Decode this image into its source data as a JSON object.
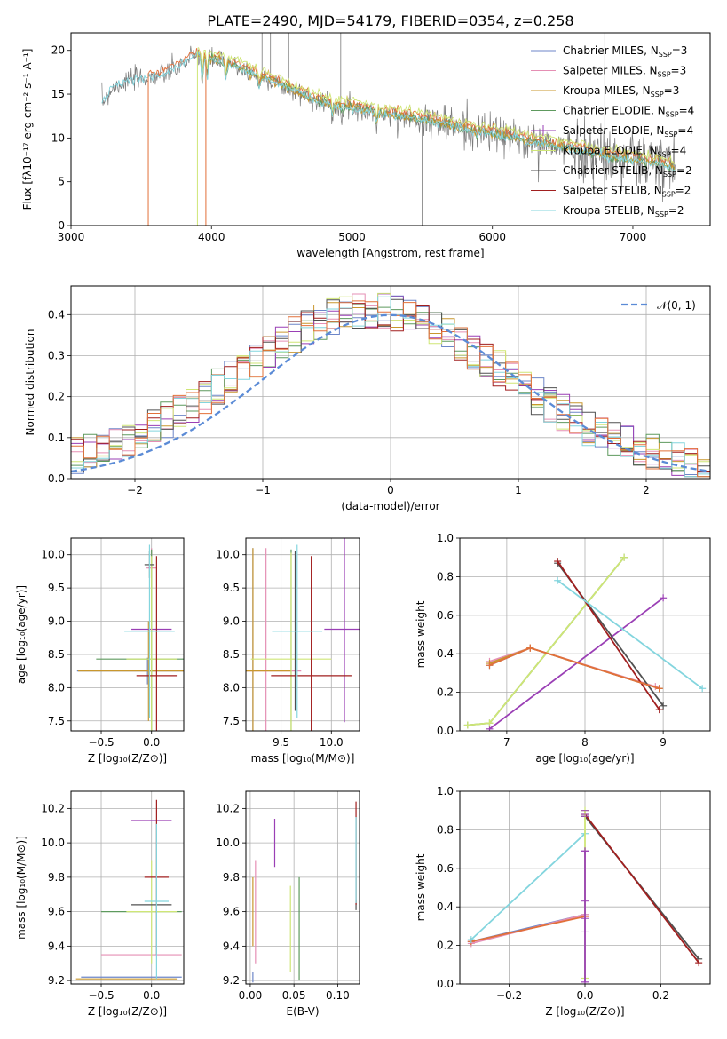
{
  "figure": {
    "title": "PLATE=2490, MJD=54179, FIBERID=0354, z=0.258"
  },
  "colors": {
    "chabrier_miles": "#6d86c8",
    "salpeter_miles": "#e58fb4",
    "kroupa_miles": "#c9972e",
    "chabrier_elodie": "#5e9a5e",
    "salpeter_elodie": "#9a3fb5",
    "kroupa_elodie": "#cfe676",
    "chabrier_stelib": "#505050",
    "salpeter_stelib": "#a11f1f",
    "kroupa_stelib": "#83d5de",
    "orange_line": "#e2703a",
    "gauss": "#5b8bd6"
  },
  "chart_data": [
    {
      "type": "line",
      "id": "spectrum",
      "title": "PLATE=2490, MJD=54179, FIBERID=0354, z=0.258",
      "xlabel": "wavelength [Angstrom, rest frame]",
      "ylabel": "Flux [fλ10⁻¹⁷ erg cm⁻² s⁻¹ A⁻¹]",
      "xlim": [
        3000,
        7550
      ],
      "ylim": [
        0,
        22
      ],
      "xticks": [
        3000,
        4000,
        5000,
        6000,
        7000
      ],
      "yticks": [
        0,
        5,
        10,
        15,
        20
      ],
      "legend": [
        "Chabrier MILES, N_SSP=3",
        "Salpeter MILES, N_SSP=3",
        "Kroupa MILES, N_SSP=3",
        "Chabrier ELODIE, N_SSP=4",
        "Salpeter ELODIE, N_SSP=4",
        "Kroupa ELODIE, N_SSP=4",
        "Chabrier STELIB, N_SSP=2",
        "Salpeter STELIB, N_SSP=2",
        "Kroupa STELIB, N_SSP=2"
      ],
      "legend_placement": "top-right",
      "continuum": {
        "wavelength": [
          3220,
          3300,
          3400,
          3500,
          3600,
          3700,
          3800,
          3900,
          4000,
          4100,
          4200,
          4300,
          4400,
          4500,
          4600,
          4700,
          4800,
          4900,
          5000,
          5200,
          5400,
          5600,
          5800,
          6000,
          6200,
          6400,
          6600,
          6800,
          7000,
          7200,
          7300
        ],
        "flux": [
          14.0,
          15.8,
          16.5,
          16.8,
          17.0,
          17.5,
          18.5,
          19.5,
          19.0,
          18.6,
          18.0,
          17.2,
          16.8,
          16.0,
          15.3,
          14.6,
          14.0,
          13.6,
          13.5,
          12.8,
          12.4,
          11.8,
          11.1,
          10.5,
          9.8,
          9.2,
          8.6,
          8.0,
          7.5,
          7.0,
          6.5
        ]
      }
    },
    {
      "type": "bar",
      "id": "residuals",
      "xlabel": "(data-model)/error",
      "ylabel": "Normed distribution",
      "xlim": [
        -2.5,
        2.5
      ],
      "ylim": [
        0,
        0.47
      ],
      "xticks": [
        -2,
        -1,
        0,
        1,
        2
      ],
      "yticks": [
        0.0,
        0.1,
        0.2,
        0.3,
        0.4
      ],
      "legend": [
        "𝒩(0, 1)"
      ],
      "legend_placement": "top-right",
      "bin_edges_step": 0.1
    },
    {
      "type": "scatter",
      "id": "age_vs_Z",
      "xlabel": "Z [log₁₀(Z/Z⊙)]",
      "ylabel": "age  [log₁₀(age/yr)]",
      "xlim": [
        -0.8,
        0.32
      ],
      "ylim": [
        7.35,
        10.25
      ],
      "xticks": [
        -0.5,
        0.0
      ],
      "yticks": [
        7.5,
        8.0,
        8.5,
        9.0,
        9.5,
        10.0
      ],
      "errorbars": [
        {
          "color": "chabrier_miles",
          "x": -0.04,
          "y": 8.25,
          "xerr": 0.7,
          "yerr": 0.2
        },
        {
          "color": "salpeter_miles",
          "x": 0.0,
          "y": 9.8,
          "xerr": 0.05,
          "yerr": 0.3
        },
        {
          "color": "kroupa_miles",
          "x": -0.03,
          "y": 8.25,
          "xerr": 0.7,
          "yerr": 0.75
        },
        {
          "color": "chabrier_elodie",
          "x": 0.0,
          "y": 8.43,
          "xerr": 0.55,
          "yerr": 1.65
        },
        {
          "color": "salpeter_elodie",
          "x": 0.0,
          "y": 8.88,
          "xerr": 0.2,
          "yerr": 0.0
        },
        {
          "color": "kroupa_elodie",
          "x": 0.0,
          "y": 8.43,
          "xerr": 0.25,
          "yerr": 1.55
        },
        {
          "color": "chabrier_stelib",
          "x": -0.02,
          "y": 9.85,
          "xerr": 0.05,
          "yerr": 0.2
        },
        {
          "color": "salpeter_stelib",
          "x": 0.05,
          "y": 8.18,
          "xerr": 0.2,
          "yerr": 1.8
        },
        {
          "color": "kroupa_stelib",
          "x": -0.02,
          "y": 8.85,
          "xerr": 0.25,
          "yerr": 1.3
        }
      ]
    },
    {
      "type": "scatter",
      "id": "age_vs_mass",
      "xlabel": "mass [log₁₀(M/M⊙)]",
      "ylabel": "",
      "xlim": [
        9.15,
        10.28
      ],
      "ylim": [
        7.35,
        10.25
      ],
      "xticks": [
        9.5,
        10.0
      ],
      "yticks": [
        7.5,
        8.0,
        8.5,
        9.0,
        9.5,
        10.0
      ],
      "errorbars": [
        {
          "color": "chabrier_miles",
          "x": 9.22,
          "y": 8.25,
          "xerr": 0.0,
          "yerr": 1.85
        },
        {
          "color": "salpeter_miles",
          "x": 9.35,
          "y": 8.25,
          "xerr": 0.35,
          "yerr": 1.85
        },
        {
          "color": "kroupa_miles",
          "x": 9.22,
          "y": 8.25,
          "xerr": 0.38,
          "yerr": 1.85
        },
        {
          "color": "chabrier_elodie",
          "x": 9.6,
          "y": 8.43,
          "xerr": 0.0,
          "yerr": 1.65
        },
        {
          "color": "salpeter_elodie",
          "x": 10.13,
          "y": 8.88,
          "xerr": 0.2,
          "yerr": 1.4
        },
        {
          "color": "kroupa_elodie",
          "x": 9.6,
          "y": 8.43,
          "xerr": 0.4,
          "yerr": 1.6
        },
        {
          "color": "chabrier_stelib",
          "x": 9.64,
          "y": 8.85,
          "xerr": 0.0,
          "yerr": 1.2
        },
        {
          "color": "salpeter_stelib",
          "x": 9.8,
          "y": 8.18,
          "xerr": 0.4,
          "yerr": 1.8
        },
        {
          "color": "kroupa_stelib",
          "x": 9.66,
          "y": 8.85,
          "xerr": 0.25,
          "yerr": 1.3
        }
      ]
    },
    {
      "type": "line",
      "id": "weight_vs_age",
      "xlabel": "age  [log₁₀(age/yr)]",
      "ylabel": "mass weight",
      "xlim": [
        6.4,
        9.6
      ],
      "ylim": [
        0.0,
        1.0
      ],
      "xticks": [
        7,
        8,
        9
      ],
      "yticks": [
        0.0,
        0.2,
        0.4,
        0.6,
        0.8,
        1.0
      ],
      "series": [
        {
          "color": "chabrier_miles",
          "x": [
            6.78,
            7.3,
            8.95
          ],
          "y": [
            0.34,
            0.43,
            0.22
          ]
        },
        {
          "color": "salpeter_miles",
          "x": [
            6.78,
            7.3,
            8.9
          ],
          "y": [
            0.36,
            0.43,
            0.23
          ]
        },
        {
          "color": "kroupa_miles",
          "x": [
            6.78,
            7.3,
            8.95
          ],
          "y": [
            0.35,
            0.43,
            0.22
          ]
        },
        {
          "color": "chabrier_elodie",
          "x": [
            6.5,
            6.78,
            8.5
          ],
          "y": [
            0.03,
            0.04,
            0.9
          ]
        },
        {
          "color": "salpeter_elodie",
          "x": [
            6.78,
            9.0
          ],
          "y": [
            0.01,
            0.69
          ]
        },
        {
          "color": "kroupa_elodie",
          "x": [
            6.5,
            6.78,
            8.5
          ],
          "y": [
            0.03,
            0.04,
            0.9
          ]
        },
        {
          "color": "chabrier_stelib",
          "x": [
            7.65,
            9.0
          ],
          "y": [
            0.87,
            0.13
          ]
        },
        {
          "color": "salpeter_stelib",
          "x": [
            7.65,
            8.95
          ],
          "y": [
            0.88,
            0.11
          ]
        },
        {
          "color": "kroupa_stelib",
          "x": [
            7.65,
            9.5
          ],
          "y": [
            0.78,
            0.22
          ]
        },
        {
          "color": "orange_line",
          "x": [
            6.78,
            7.3,
            8.95
          ],
          "y": [
            0.34,
            0.43,
            0.22
          ]
        }
      ]
    },
    {
      "type": "scatter",
      "id": "mass_vs_Z",
      "xlabel": "Z [log₁₀(Z/Z⊙)]",
      "ylabel": "mass [log₁₀(M/M⊙)]",
      "xlim": [
        -0.8,
        0.32
      ],
      "ylim": [
        9.18,
        10.3
      ],
      "xticks": [
        -0.5,
        0.0
      ],
      "yticks": [
        9.2,
        9.4,
        9.6,
        9.8,
        10.0,
        10.2
      ],
      "errorbars": [
        {
          "color": "chabrier_miles",
          "x": -0.2,
          "y": 9.22,
          "xerr": 0.5,
          "yerr": 0.0
        },
        {
          "color": "salpeter_miles",
          "x": -0.1,
          "y": 9.35,
          "xerr": 0.4,
          "yerr": 0.0
        },
        {
          "color": "kroupa_miles",
          "x": -0.25,
          "y": 9.21,
          "xerr": 0.5,
          "yerr": 0.0
        },
        {
          "color": "chabrier_elodie",
          "x": -0.1,
          "y": 9.6,
          "xerr": 0.4,
          "yerr": 0.0
        },
        {
          "color": "salpeter_elodie",
          "x": 0.0,
          "y": 10.13,
          "xerr": 0.2,
          "yerr": 0.0
        },
        {
          "color": "kroupa_elodie",
          "x": 0.0,
          "y": 9.6,
          "xerr": 0.25,
          "yerr": 0.3
        },
        {
          "color": "chabrier_stelib",
          "x": 0.0,
          "y": 9.64,
          "xerr": 0.2,
          "yerr": 0.0
        },
        {
          "color": "salpeter_stelib",
          "x": 0.05,
          "y": 9.8,
          "xerr": 0.12,
          "yerr": 0.45
        },
        {
          "color": "kroupa_stelib",
          "x": 0.05,
          "y": 9.66,
          "xerr": 0.12,
          "yerr": 0.45
        }
      ]
    },
    {
      "type": "scatter",
      "id": "mass_vs_EBV",
      "xlabel": "E(B-V)",
      "ylabel": "",
      "xlim": [
        -0.005,
        0.125
      ],
      "ylim": [
        9.18,
        10.3
      ],
      "xticks": [
        0.0,
        0.05,
        0.1
      ],
      "yticks": [
        9.2,
        9.4,
        9.6,
        9.8,
        10.0,
        10.2
      ],
      "errorbars": [
        {
          "color": "chabrier_miles",
          "x": 0.003,
          "y": 9.22,
          "xerr": 0.0,
          "yerr": 0.0
        },
        {
          "color": "salpeter_miles",
          "x": 0.006,
          "y": 9.6,
          "xerr": 0.0,
          "yerr": 0.3
        },
        {
          "color": "kroupa_miles",
          "x": 0.003,
          "y": 9.6,
          "xerr": 0.0,
          "yerr": 0.2
        },
        {
          "color": "chabrier_elodie",
          "x": 0.056,
          "y": 9.5,
          "xerr": 0.0,
          "yerr": 0.3
        },
        {
          "color": "salpeter_elodie",
          "x": 0.028,
          "y": 10.0,
          "xerr": 0.0,
          "yerr": 0.14
        },
        {
          "color": "kroupa_elodie",
          "x": 0.046,
          "y": 9.5,
          "xerr": 0.0,
          "yerr": 0.25
        },
        {
          "color": "chabrier_stelib",
          "x": 0.121,
          "y": 9.64,
          "xerr": 0.0,
          "yerr": 0.0
        },
        {
          "color": "salpeter_stelib",
          "x": 0.121,
          "y": 9.94,
          "xerr": 0.0,
          "yerr": 0.3
        },
        {
          "color": "kroupa_stelib",
          "x": 0.121,
          "y": 9.9,
          "xerr": 0.0,
          "yerr": 0.25
        }
      ]
    },
    {
      "type": "line",
      "id": "weight_vs_Z",
      "xlabel": "Z [log₁₀(Z/Z⊙)]",
      "ylabel": "mass weight",
      "xlim": [
        -0.33,
        0.33
      ],
      "ylim": [
        0.0,
        1.0
      ],
      "xticks": [
        -0.2,
        0.0,
        0.2
      ],
      "yticks": [
        0.0,
        0.2,
        0.4,
        0.6,
        0.8,
        1.0
      ],
      "series": [
        {
          "color": "chabrier_miles",
          "x": [
            -0.3,
            0.0
          ],
          "y": [
            0.22,
            0.36
          ]
        },
        {
          "color": "salpeter_miles",
          "x": [
            -0.3,
            0.0
          ],
          "y": [
            0.21,
            0.36
          ]
        },
        {
          "color": "orange_line",
          "x": [
            -0.3,
            0.0
          ],
          "y": [
            0.22,
            0.35
          ]
        },
        {
          "color": "kroupa_stelib",
          "x": [
            -0.3,
            0.0
          ],
          "y": [
            0.23,
            0.78
          ]
        },
        {
          "color": "chabrier_stelib",
          "x": [
            0.0,
            0.3
          ],
          "y": [
            0.87,
            0.13
          ]
        },
        {
          "color": "salpeter_stelib",
          "x": [
            0.0,
            0.3
          ],
          "y": [
            0.88,
            0.11
          ]
        },
        {
          "color": "kroupa_elodie",
          "x": [
            0.0,
            0.0
          ],
          "y": [
            0.03,
            0.9
          ]
        },
        {
          "color": "salpeter_elodie",
          "x": [
            0.0,
            0.0
          ],
          "y": [
            0.01,
            0.69
          ]
        }
      ],
      "markers": {
        "x": 0.0,
        "y": [
          0.27,
          0.34,
          0.43,
          0.69,
          0.87,
          0.88,
          0.9
        ]
      }
    }
  ]
}
